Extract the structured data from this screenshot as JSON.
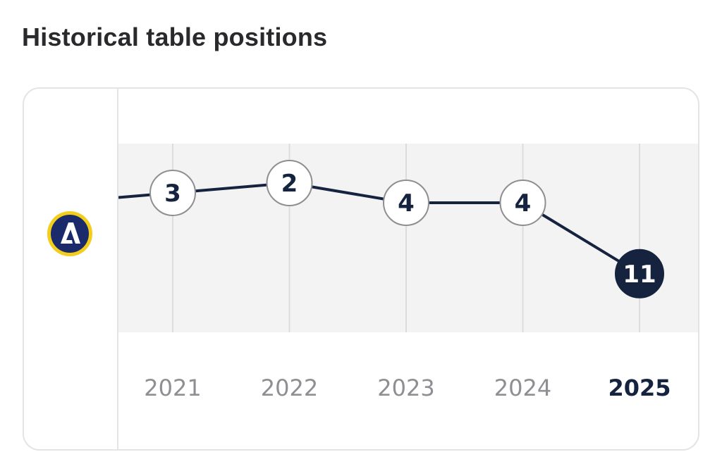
{
  "header": {
    "title": "Historical table positions"
  },
  "team": {
    "logo_icon": "club-crest-icon",
    "logo_letter": "A",
    "colors": {
      "ring": "#f2cd1b",
      "badge": "#1b2a6b",
      "letter": "#ffffff"
    }
  },
  "colors": {
    "line": "#15233f",
    "highlight_fill": "#15233f",
    "node_fill": "#ffffff",
    "node_stroke": "#8e8e93",
    "band": "#f3f3f4",
    "gridline": "#dcdcde",
    "year_text": "#8e8e93",
    "year_text_current": "#15233f"
  },
  "chart_data": {
    "type": "line",
    "title": "Historical table positions",
    "categories": [
      "2021",
      "2022",
      "2023",
      "2024",
      "2025"
    ],
    "values": [
      3,
      2,
      4,
      4,
      11
    ],
    "labels": [
      "3",
      "2",
      "4",
      "4",
      "11"
    ],
    "highlighted_category": "2025",
    "y_inverted": true,
    "grid": "vertical",
    "legend": "none"
  }
}
